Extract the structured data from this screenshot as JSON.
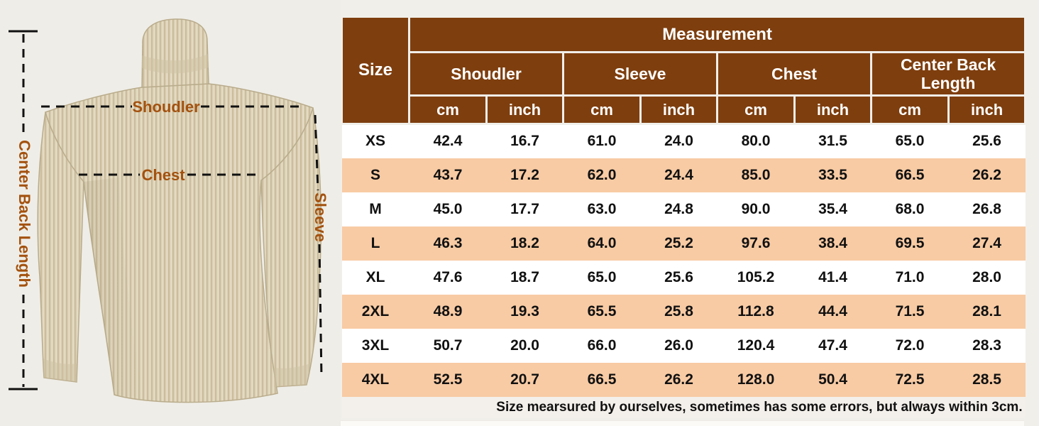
{
  "diagram": {
    "labels": {
      "shoulder": "Shoudler",
      "chest": "Chest",
      "sleeve": "Sleeve",
      "center_back_length": "Center Back Length"
    }
  },
  "chart_data": {
    "type": "table",
    "title": "Measurement",
    "row_header": "Size",
    "column_groups": [
      "Shoudler",
      "Sleeve",
      "Chest",
      "Center Back Length"
    ],
    "units": [
      "cm",
      "inch"
    ],
    "rows": [
      {
        "size": "XS",
        "values": [
          "42.4",
          "16.7",
          "61.0",
          "24.0",
          "80.0",
          "31.5",
          "65.0",
          "25.6"
        ]
      },
      {
        "size": "S",
        "values": [
          "43.7",
          "17.2",
          "62.0",
          "24.4",
          "85.0",
          "33.5",
          "66.5",
          "26.2"
        ]
      },
      {
        "size": "M",
        "values": [
          "45.0",
          "17.7",
          "63.0",
          "24.8",
          "90.0",
          "35.4",
          "68.0",
          "26.8"
        ]
      },
      {
        "size": "L",
        "values": [
          "46.3",
          "18.2",
          "64.0",
          "25.2",
          "97.6",
          "38.4",
          "69.5",
          "27.4"
        ]
      },
      {
        "size": "XL",
        "values": [
          "47.6",
          "18.7",
          "65.0",
          "25.6",
          "105.2",
          "41.4",
          "71.0",
          "28.0"
        ]
      },
      {
        "size": "2XL",
        "values": [
          "48.9",
          "19.3",
          "65.5",
          "25.8",
          "112.8",
          "44.4",
          "71.5",
          "28.1"
        ]
      },
      {
        "size": "3XL",
        "values": [
          "50.7",
          "20.0",
          "66.0",
          "26.0",
          "120.4",
          "47.4",
          "72.0",
          "28.3"
        ]
      },
      {
        "size": "4XL",
        "values": [
          "52.5",
          "20.7",
          "66.5",
          "26.2",
          "128.0",
          "50.4",
          "72.5",
          "28.5"
        ]
      }
    ],
    "footnote": "Size mearsured by ourselves, sometimes has some errors, but always within 3cm."
  },
  "colors": {
    "header_bg": "#7E3E0E",
    "row_alt_bg": "#F8CBA4",
    "row_bg": "#FFFFFF",
    "label_brown": "#A3510E",
    "sweater_base": "#DBD1B6"
  }
}
